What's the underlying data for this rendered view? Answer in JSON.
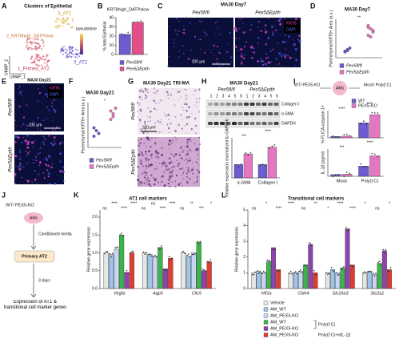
{
  "panels": {
    "A": {
      "letter": "A",
      "title": "Clusters of Epithelial",
      "clusters": [
        "3_AT1",
        "2_KRT8high_DATPslow",
        "1_Primed_AT2",
        "0_AT2"
      ],
      "pseudotime": "pseudotime",
      "x_label": "UMAP_1",
      "y_label": "UMAP_2"
    },
    "B": {
      "letter": "B",
      "type": "bar",
      "title": "KRT8high_DATPslow",
      "y_label": "% total Epithelial",
      "ylim": [
        0,
        40
      ],
      "yticks": [
        0,
        10,
        20,
        30,
        40
      ],
      "series": [
        {
          "name": "Pex5fl/fl",
          "color": "#6f5bd0",
          "values": [
            22
          ]
        },
        {
          "name": "Pex5ΔEpith",
          "color": "#e0508a",
          "values": [
            35
          ]
        }
      ]
    },
    "C": {
      "letter": "C",
      "title": "MA30 Day7",
      "groups": [
        "Pex5fl/fl",
        "Pex5ΔEpith"
      ],
      "stains": [
        "KRT8",
        "DAPI"
      ],
      "scale": "100 μm"
    },
    "D": {
      "letter": "D",
      "type": "dot",
      "title": "MA30 Day7",
      "y_label": "Parenchymal KRT8+ Area (a.u.)",
      "ylim": [
        0,
        12
      ],
      "sig": [
        "**"
      ],
      "series": [
        {
          "name": "Pex5fl/fl",
          "color": "#6f5bd0",
          "values": [
            2,
            2.5,
            3,
            1.8,
            2.2
          ]
        },
        {
          "name": "Pex5ΔEpith",
          "color": "#e377c2",
          "values": [
            7,
            9,
            8,
            10,
            6.5,
            8.5,
            9.5
          ]
        }
      ]
    },
    "E": {
      "letter": "E",
      "title": "MA30 Day21",
      "groups": [
        "Pex5fl/fl",
        "Pex5ΔEpith"
      ],
      "stains": [
        "KRT8",
        "DAPI"
      ],
      "scale": "100 μm"
    },
    "F": {
      "letter": "F",
      "type": "dot",
      "title": "MA30 Day21",
      "y_label": "Parenchymal KRT8+ Area (a.u.)",
      "ylim": [
        0,
        8
      ],
      "sig": [
        "*"
      ],
      "series": [
        {
          "name": "Pex5fl/fl",
          "color": "#6f5bd0",
          "values": [
            2,
            3,
            2.5,
            3.5
          ]
        },
        {
          "name": "Pex5ΔEpith",
          "color": "#e377c2",
          "values": [
            5,
            6,
            7,
            6.5,
            5.5
          ]
        }
      ]
    },
    "G": {
      "letter": "G",
      "title": "MA30 Day21 TRI-MA",
      "groups": [
        "Pex5fl/fl",
        "Pex5ΔEpith"
      ],
      "scale": "100 μm"
    },
    "H": {
      "letter": "H",
      "type": "bar",
      "title": "MA30 Day21",
      "groups": [
        "Pex5fl/fl",
        "Pex5ΔEpith"
      ],
      "lanes": [
        1,
        2,
        3,
        4,
        5,
        6,
        1,
        2,
        3,
        4,
        5,
        6
      ],
      "blots": [
        "Collagen I",
        "α-SMA",
        "GAPDH"
      ],
      "y_label": "Relative expression (normalized to GAPDH)",
      "categories": [
        "α-SMA",
        "Collagen I"
      ],
      "ylim": [
        0,
        3
      ],
      "sig": [
        "***",
        "****"
      ],
      "series": [
        {
          "color": "#6f5bd0",
          "values": [
            1,
            1
          ]
        },
        {
          "color": "#e377c2",
          "values": [
            1.8,
            2.3
          ]
        }
      ]
    },
    "I": {
      "letter": "I",
      "cells": "WT/ PEX5-KO",
      "ams": "AMs",
      "treat": "Mock/ Poly(I:C)",
      "flica": {
        "type": "bar",
        "y_label": "% FLICA-caspase-1+",
        "ylim": [
          0,
          100
        ],
        "sig": [
          "****",
          "****"
        ],
        "series": [
          {
            "name": "WT",
            "color": "#6f5bd0",
            "values": [
              5,
              55
            ]
          },
          {
            "name": "PEX5-KO",
            "color": "#e377c2",
            "values": [
              6,
              85
            ]
          }
        ]
      },
      "il1b": {
        "type": "bar",
        "y_label": "IL-1β (pg/ml)",
        "categories": [
          "Mock",
          "Poly(I:C)"
        ],
        "ylim": [
          0,
          800
        ],
        "sig": [
          "***",
          "****"
        ],
        "series": [
          {
            "color": "#6f5bd0",
            "values": [
              50,
              300
            ]
          },
          {
            "color": "#e377c2",
            "values": [
              60,
              600
            ]
          }
        ]
      }
    },
    "J": {
      "letter": "J",
      "cells": "WT/ PEX5-KO",
      "ams": "AMs",
      "media": "Conditioned media",
      "target": "Primary AT2",
      "time": "3 days",
      "readout": "Expression of AT1 & transitional cell marker genes"
    },
    "K": {
      "letter": "K",
      "type": "bar",
      "title": "AT1 cell markers",
      "y_label": "Relative gene expression",
      "categories": [
        "Vegfa",
        "Aqp5",
        "Clic5"
      ],
      "ylim": [
        0,
        2.2
      ],
      "yticks": [
        {
          "value": 0,
          "label": "0.0"
        },
        {
          "value": 0.5,
          "label": "0.5"
        },
        {
          "value": 1,
          "label": "1.0"
        },
        {
          "value": 1.5,
          "label": "1.5"
        },
        {
          "value": 2,
          "label": "2.0"
        }
      ],
      "sig": [
        "ns",
        "****",
        "****",
        "****",
        "ns",
        "ns",
        "****",
        "****",
        "ns",
        "**",
        "***",
        "*"
      ],
      "series": [
        {
          "color": "#e6e6e6",
          "values": [
            1,
            1,
            1
          ]
        },
        {
          "color": "#9ec5e8",
          "values": [
            0.95,
            0.95,
            0.9
          ]
        },
        {
          "color": "#c9d6f2",
          "values": [
            1.1,
            0.9,
            1.0
          ]
        },
        {
          "color": "#3cb44b",
          "values": [
            1.5,
            1.15,
            1.3
          ]
        },
        {
          "color": "#8e44ad",
          "values": [
            0.45,
            0.55,
            0.5
          ]
        },
        {
          "color": "#e03c31",
          "values": [
            1.0,
            0.85,
            0.75
          ]
        }
      ]
    },
    "L": {
      "letter": "L",
      "type": "bar",
      "title": "Transitional cell markers",
      "y_label": "Relative gene expression",
      "categories": [
        "Hif1a",
        "Cldn4",
        "Slc16a3",
        "Slc2a1"
      ],
      "ylim": [
        0,
        5
      ],
      "yticks": [
        0,
        1,
        2,
        3,
        4,
        5
      ],
      "sig": [
        "ns",
        "*",
        "****",
        "****",
        "ns",
        "**",
        "*",
        "****",
        "****",
        "*",
        "ns",
        "*"
      ],
      "series": [
        {
          "name": "Vehicle",
          "color": "#e6e6e6",
          "values": [
            1,
            1,
            1,
            1
          ]
        },
        {
          "name": "AM_WT",
          "color": "#9ec5e8",
          "values": [
            1.1,
            1.0,
            1.2,
            1.1
          ]
        },
        {
          "name": "AM_PEX5-KO",
          "color": "#c9d6f2",
          "values": [
            1.0,
            1.1,
            1.0,
            0.9
          ]
        },
        {
          "name": "AM_WT",
          "color": "#3cb44b",
          "values": [
            1.7,
            1.5,
            1.3,
            1.6
          ]
        },
        {
          "name": "AM_PEX5-KO",
          "color": "#8e44ad",
          "values": [
            2.6,
            2.8,
            3.8,
            2.4
          ]
        },
        {
          "name": "AM_PEX5-KO",
          "color": "#e03c31",
          "values": [
            1.2,
            1.0,
            1.5,
            1.2
          ]
        }
      ],
      "legend_groups": [
        "Poly(I:C)",
        "Poly(I:C)+αIL-1β"
      ]
    }
  }
}
